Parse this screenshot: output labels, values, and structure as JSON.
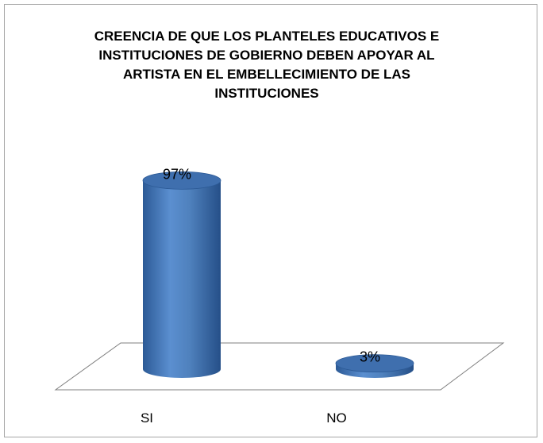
{
  "chart_data": {
    "type": "bar",
    "title_lines": [
      "CREENCIA DE QUE LOS PLANTELES EDUCATIVOS E",
      "INSTITUCIONES DE GOBIERNO DEBEN APOYAR AL",
      "ARTISTA EN EL EMBELLECIMIENTO DE LAS",
      "INSTITUCIONES"
    ],
    "categories": [
      "SI",
      "NO"
    ],
    "values": [
      97,
      3
    ],
    "data_labels": [
      "97%",
      "3%"
    ],
    "unit": "%",
    "ylim": [
      0,
      100
    ],
    "style": "3d-cylinder",
    "colors": {
      "bar": "#4f81bd",
      "bar_dark": "#2c5a96",
      "bar_top": "#3f6fae",
      "frame": "#a6a6a6",
      "floor": "#7f7f7f"
    }
  }
}
